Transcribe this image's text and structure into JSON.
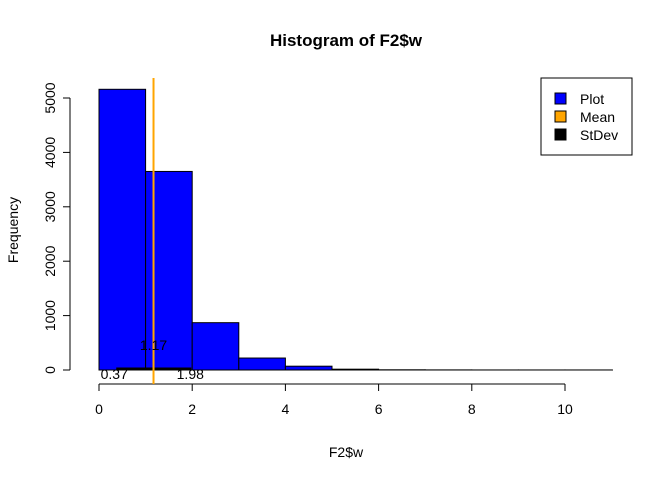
{
  "chart_data": {
    "type": "bar",
    "title": "Histogram of F2$w",
    "xlabel": "F2$w",
    "ylabel": "Frequency",
    "bins": [
      {
        "x0": 0,
        "x1": 1,
        "count": 5160
      },
      {
        "x0": 1,
        "x1": 2,
        "count": 3650
      },
      {
        "x0": 2,
        "x1": 3,
        "count": 870
      },
      {
        "x0": 3,
        "x1": 4,
        "count": 220
      },
      {
        "x0": 4,
        "x1": 5,
        "count": 70
      },
      {
        "x0": 5,
        "x1": 6,
        "count": 15
      },
      {
        "x0": 6,
        "x1": 7,
        "count": 4
      },
      {
        "x0": 7,
        "x1": 8,
        "count": 2
      },
      {
        "x0": 8,
        "x1": 9,
        "count": 1
      },
      {
        "x0": 9,
        "x1": 10,
        "count": 1
      },
      {
        "x0": 10,
        "x1": 11,
        "count": 1
      }
    ],
    "bar_color": "#0000FF",
    "mean": 1.17,
    "mean_label": "1.17",
    "mean_color": "#FFA500",
    "stdev_low": 0.37,
    "stdev_high": 1.98,
    "stdev_low_label": "0.37",
    "stdev_high_label": "1.98",
    "stdev_color": "#000000",
    "x_ticks": [
      0,
      2,
      4,
      6,
      8,
      10
    ],
    "y_ticks": [
      0,
      1000,
      2000,
      3000,
      4000,
      5000
    ],
    "xlim": [
      0,
      11
    ],
    "ylim": [
      0,
      5300
    ],
    "grid": false,
    "legend": {
      "position": "top-right",
      "items": [
        {
          "label": "Plot",
          "color": "#0000FF"
        },
        {
          "label": "Mean",
          "color": "#FFA500"
        },
        {
          "label": "StDev",
          "color": "#000000"
        }
      ]
    }
  }
}
